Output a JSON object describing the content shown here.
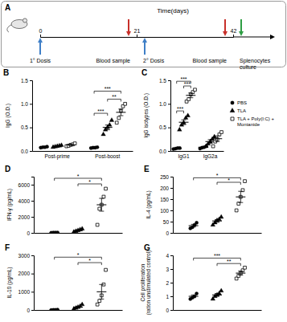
{
  "chart_data": [
    {
      "type": "timeline",
      "title": "A",
      "xlabel": "Time(days)",
      "xlim": [
        0,
        42
      ],
      "xticks": [
        0,
        21,
        42
      ],
      "events": [
        {
          "x": 0,
          "label": "1° Dosis",
          "color": "#3f7fc7",
          "marker": "arrow-up"
        },
        {
          "x": 21,
          "label": "Blood sample",
          "color": "#c8302a",
          "marker": "arrow-down"
        },
        {
          "x": 21,
          "label": "2° Dosis",
          "color": "#3f7fc7",
          "marker": "arrow-up"
        },
        {
          "x": 42,
          "label": "Blood sample",
          "color": "#c8302a",
          "marker": "arrow-down"
        },
        {
          "x": 42,
          "label": "Splenocytes culture",
          "color": "#2e9e44",
          "marker": "arrow-down"
        }
      ]
    },
    {
      "type": "scatter",
      "title": "B",
      "ylabel": "IgG (O.D.)",
      "categories": [
        "Post-prime",
        "Post-boost"
      ],
      "ylim": [
        0,
        1.5
      ],
      "yticks": [
        {
          "value": 0,
          "label": "0.0"
        },
        {
          "value": 0.5,
          "label": "0.5"
        },
        {
          "value": 1,
          "label": "1.0"
        },
        {
          "value": 1.5,
          "label": "1.5"
        }
      ],
      "series": [
        {
          "color": "#000000",
          "marker": "circle",
          "values": [
            [
              0.07,
              0.08,
              0.08,
              0.09
            ],
            [
              0.06,
              0.07,
              0.07,
              0.08
            ]
          ],
          "mean": [
            0.08,
            0.07
          ],
          "error": [
            0.005,
            0.005
          ]
        },
        {
          "color": "#000000",
          "marker": "triangle",
          "values": [
            [
              0.08,
              0.09,
              0.1,
              0.11,
              0.12
            ],
            [
              0.35,
              0.45,
              0.5,
              0.55,
              0.65
            ]
          ],
          "mean": [
            0.1,
            0.5
          ],
          "error": [
            0.01,
            0.05
          ]
        },
        {
          "color": "#000000",
          "marker": "square-open",
          "values": [
            [
              0.1,
              0.11,
              0.13,
              0.14,
              0.16
            ],
            [
              0.6,
              0.7,
              0.85,
              0.95,
              1.0
            ]
          ],
          "mean": [
            0.13,
            0.82
          ],
          "error": [
            0.01,
            0.07
          ]
        }
      ],
      "annotations": [
        {
          "category": 1,
          "from": 0,
          "to": 1,
          "y": 0.8,
          "label": "***"
        },
        {
          "category": 1,
          "from": 1,
          "to": 2,
          "y": 1.1,
          "label": "**"
        },
        {
          "category": 1,
          "from": 0,
          "to": 2,
          "y": 1.27,
          "label": "***"
        }
      ]
    },
    {
      "type": "scatter",
      "title": "C",
      "ylabel": "IgG isotypes (O.D.)",
      "categories": [
        "IgG1",
        "IgG2a"
      ],
      "ylim": [
        0,
        1.5
      ],
      "yticks": [
        {
          "value": 0,
          "label": "0.0"
        },
        {
          "value": 0.5,
          "label": "0.5"
        },
        {
          "value": 1,
          "label": "1.0"
        },
        {
          "value": 1.5,
          "label": "1.5"
        }
      ],
      "legend": "right",
      "series": [
        {
          "name": "PBS",
          "color": "#000000",
          "marker": "circle",
          "values": [
            [
              0.04,
              0.05,
              0.06,
              0.06
            ],
            [
              0.05,
              0.07,
              0.08,
              0.1
            ]
          ],
          "mean": [
            0.05,
            0.08
          ],
          "error": [
            0.005,
            0.01
          ]
        },
        {
          "name": "TLA",
          "color": "#000000",
          "marker": "triangle",
          "values": [
            [
              0.45,
              0.55,
              0.6,
              0.7,
              0.75
            ],
            [
              0.1,
              0.15,
              0.2,
              0.25,
              0.3
            ]
          ],
          "mean": [
            0.61,
            0.2
          ],
          "error": [
            0.05,
            0.04
          ]
        },
        {
          "name": "TLA + Poly(I:C) + Montanide",
          "color": "#000000",
          "marker": "square-open",
          "values": [
            [
              1.05,
              1.1,
              1.2,
              1.25,
              1.3
            ],
            [
              0.1,
              0.2,
              0.25,
              0.35,
              0.4
            ]
          ],
          "mean": [
            1.18,
            0.26
          ],
          "error": [
            0.05,
            0.06
          ]
        }
      ],
      "annotations": [
        {
          "category": 0,
          "from": 0,
          "to": 1,
          "y": 0.85,
          "label": "***"
        },
        {
          "category": 0,
          "from": 1,
          "to": 2,
          "y": 1.38,
          "label": "***"
        },
        {
          "category": 0,
          "from": 0,
          "to": 2,
          "y": 1.48,
          "label": "***"
        }
      ]
    },
    {
      "type": "scatter",
      "title": "D",
      "ylabel": "IFN-γ (pg/mL)",
      "categories": [
        null
      ],
      "ylim": [
        0,
        7000
      ],
      "yticks": [
        0,
        2000,
        4000,
        6000
      ],
      "series": [
        {
          "color": "#000000",
          "marker": "circle",
          "values": [
            [
              20,
              30,
              40,
              50
            ]
          ],
          "mean": [
            35
          ],
          "error": [
            8
          ]
        },
        {
          "color": "#000000",
          "marker": "triangle",
          "values": [
            [
              100,
              200,
              300,
              400,
              500
            ]
          ],
          "mean": [
            300
          ],
          "error": [
            80
          ]
        },
        {
          "color": "#000000",
          "marker": "square-open",
          "values": [
            [
              1000,
              3000,
              3500,
              4500,
              5500
            ]
          ],
          "mean": [
            3500
          ],
          "error": [
            800
          ]
        }
      ],
      "annotations": [
        {
          "category": 0,
          "from": 1,
          "to": 2,
          "y": 6100,
          "label": "*"
        },
        {
          "category": 0,
          "from": 0,
          "to": 2,
          "y": 6800,
          "label": "*"
        }
      ]
    },
    {
      "type": "scatter",
      "title": "E",
      "ylabel": "IL-4 (pg/mL)",
      "categories": [
        null
      ],
      "ylim": [
        0,
        250
      ],
      "yticks": [
        0,
        50,
        100,
        150,
        200,
        250
      ],
      "series": [
        {
          "color": "#000000",
          "marker": "circle",
          "values": [
            [
              20,
              25,
              35,
              45
            ]
          ],
          "mean": [
            32
          ],
          "error": [
            6
          ]
        },
        {
          "color": "#000000",
          "marker": "triangle",
          "values": [
            [
              35,
              45,
              55,
              60,
              70
            ]
          ],
          "mean": [
            53
          ],
          "error": [
            6
          ]
        },
        {
          "color": "#000000",
          "marker": "square-open",
          "values": [
            [
              100,
              130,
              160,
              190,
              230
            ]
          ],
          "mean": [
            160
          ],
          "error": [
            25
          ]
        }
      ],
      "annotations": [
        {
          "category": 0,
          "from": 1,
          "to": 2,
          "y": 225,
          "label": "*"
        },
        {
          "category": 0,
          "from": 0,
          "to": 2,
          "y": 245,
          "label": "*"
        }
      ]
    },
    {
      "type": "scatter",
      "title": "F",
      "ylabel": "IL-10 (pg/mL)",
      "categories": [
        null
      ],
      "ylim": [
        0,
        3000
      ],
      "yticks": [
        0,
        1000,
        2000,
        3000
      ],
      "series": [
        {
          "color": "#000000",
          "marker": "circle",
          "values": [
            [
              0,
              5,
              10,
              15
            ]
          ],
          "mean": [
            8
          ],
          "error": [
            4
          ]
        },
        {
          "color": "#000000",
          "marker": "triangle",
          "values": [
            [
              50,
              100,
              150,
              200,
              300
            ]
          ],
          "mean": [
            160
          ],
          "error": [
            45
          ]
        },
        {
          "color": "#000000",
          "marker": "square-open",
          "values": [
            [
              300,
              500,
              800,
              1400,
              2200
            ]
          ],
          "mean": [
            1000
          ],
          "error": [
            400
          ]
        }
      ],
      "annotations": [
        {
          "category": 0,
          "from": 1,
          "to": 2,
          "y": 2600,
          "label": "*"
        },
        {
          "category": 0,
          "from": 0,
          "to": 2,
          "y": 2900,
          "label": "*"
        }
      ]
    },
    {
      "type": "scatter",
      "title": "G",
      "ylabel": [
        "Cell proliferation",
        "(ration unstimulated control)"
      ],
      "categories": [
        null
      ],
      "ylim": [
        0,
        4
      ],
      "yticks": [
        0,
        1,
        2,
        3,
        4
      ],
      "series": [
        {
          "color": "#000000",
          "marker": "circle",
          "values": [
            [
              0.8,
              0.9,
              1.0,
              1.2
            ]
          ],
          "mean": [
            1.0
          ],
          "error": [
            0.1
          ]
        },
        {
          "color": "#000000",
          "marker": "triangle",
          "values": [
            [
              0.8,
              1.0,
              1.1,
              1.2,
              1.4
            ]
          ],
          "mean": [
            1.1
          ],
          "error": [
            0.1
          ]
        },
        {
          "color": "#000000",
          "marker": "square-open",
          "values": [
            [
              2.3,
              2.5,
              2.7,
              2.9,
              3.1
            ]
          ],
          "mean": [
            2.7
          ],
          "error": [
            0.15
          ]
        }
      ],
      "annotations": [
        {
          "category": 0,
          "from": 1,
          "to": 2,
          "y": 3.4,
          "label": "**"
        },
        {
          "category": 0,
          "from": 0,
          "to": 2,
          "y": 3.8,
          "label": "***"
        }
      ]
    }
  ]
}
